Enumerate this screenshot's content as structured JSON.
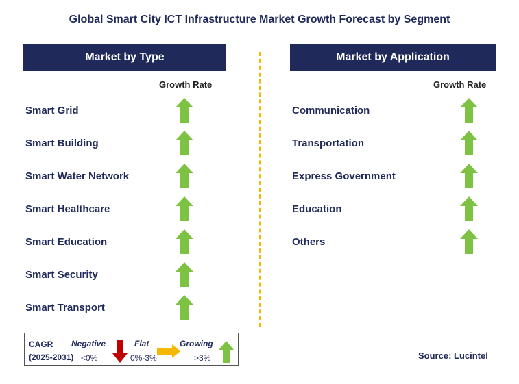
{
  "title": "Global Smart City ICT Infrastructure Market Growth Forecast by Segment",
  "left": {
    "header": "Market by Type",
    "growth_label": "Growth Rate",
    "items": [
      {
        "label": "Smart Grid",
        "trend": "growing"
      },
      {
        "label": "Smart Building",
        "trend": "growing"
      },
      {
        "label": "Smart Water Network",
        "trend": "growing"
      },
      {
        "label": "Smart Healthcare",
        "trend": "growing"
      },
      {
        "label": "Smart Education",
        "trend": "growing"
      },
      {
        "label": "Smart Security",
        "trend": "growing"
      },
      {
        "label": "Smart Transport",
        "trend": "growing"
      }
    ]
  },
  "right": {
    "header": "Market by Application",
    "growth_label": "Growth Rate",
    "items": [
      {
        "label": "Communication",
        "trend": "growing"
      },
      {
        "label": "Transportation",
        "trend": "growing"
      },
      {
        "label": "Express Government",
        "trend": "growing"
      },
      {
        "label": "Education",
        "trend": "growing"
      },
      {
        "label": "Others",
        "trend": "growing"
      }
    ]
  },
  "legend": {
    "cagr_label": "CAGR",
    "period": "(2025-2031)",
    "negative_label": "Negative",
    "negative_range": "<0%",
    "flat_label": "Flat",
    "flat_range": "0%-3%",
    "growing_label": "Growing",
    "growing_range": ">3%"
  },
  "source": "Source: Lucintel",
  "colors": {
    "header_bg": "#1f2a5a",
    "growing_arrow": "#7dc242",
    "negative_arrow": "#c00000",
    "flat_arrow": "#f5b800",
    "divider": "#f5b800"
  }
}
